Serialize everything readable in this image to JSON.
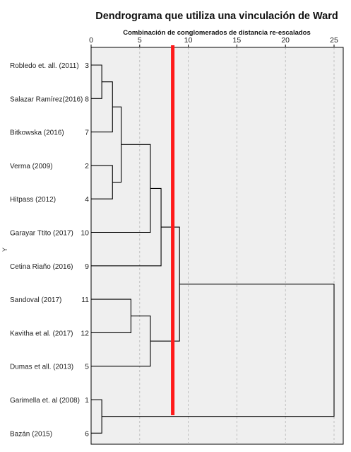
{
  "chart_data": {
    "type": "dendrogram",
    "title": "Dendrograma que utiliza una vinculación de Ward",
    "subtitle": "Combinación de conglomerados de distancia re-escalados",
    "ylabel": "Y",
    "xlim": [
      0,
      25
    ],
    "xticks": [
      0,
      5,
      10,
      15,
      20,
      25
    ],
    "cut_line": {
      "x": 8.4,
      "color": "#ff1a1a"
    },
    "leaves": [
      {
        "case": 3,
        "label": "Robledo et. all. (2011)"
      },
      {
        "case": 8,
        "label": "Salazar Ramírez(2016)"
      },
      {
        "case": 7,
        "label": "Bitkowska (2016)"
      },
      {
        "case": 2,
        "label": "Verma (2009)"
      },
      {
        "case": 4,
        "label": "Hitpass (2012)"
      },
      {
        "case": 10,
        "label": "Garayar Ttito (2017)"
      },
      {
        "case": 9,
        "label": "Cetina Riaño (2016)"
      },
      {
        "case": 11,
        "label": "Sandoval (2017)"
      },
      {
        "case": 12,
        "label": "Kavitha et al. (2017)"
      },
      {
        "case": 5,
        "label": "Dumas et all. (2013)"
      },
      {
        "case": 1,
        "label": "Garimella et. al (2008)"
      },
      {
        "case": 6,
        "label": "Bazán (2015)"
      }
    ],
    "merges": [
      {
        "a": "L0",
        "b": "L1",
        "height": 1.1
      },
      {
        "a": "L3",
        "b": "L4",
        "height": 2.2
      },
      {
        "a": "M0",
        "b": "L2",
        "height": 2.2
      },
      {
        "a": "M2",
        "b": "M1",
        "height": 3.1
      },
      {
        "a": "L10",
        "b": "L11",
        "height": 1.1
      },
      {
        "a": "L7",
        "b": "L8",
        "height": 4.1
      },
      {
        "a": "M3",
        "b": "L5",
        "height": 6.1
      },
      {
        "a": "M5",
        "b": "L9",
        "height": 6.1
      },
      {
        "a": "M6",
        "b": "L6",
        "height": 7.2
      },
      {
        "a": "M8",
        "b": "M7",
        "height": 9.1
      },
      {
        "a": "M9",
        "b": "M4",
        "height": 25
      }
    ]
  }
}
